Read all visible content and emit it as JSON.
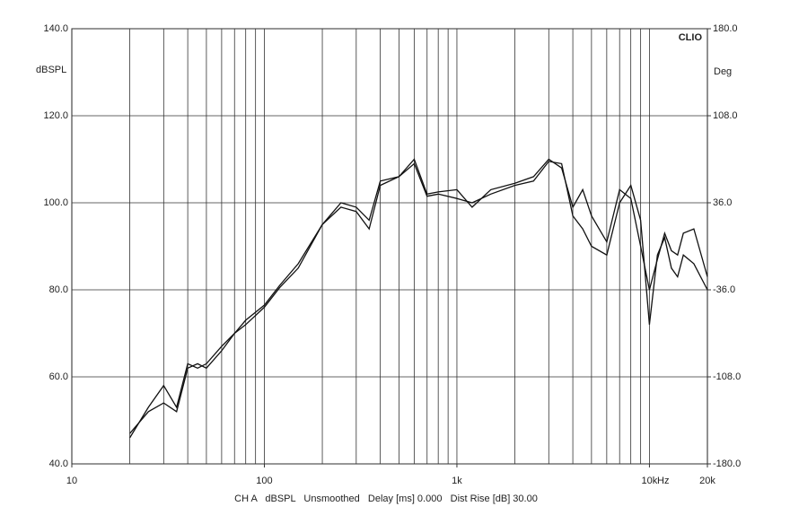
{
  "chart_data": {
    "type": "line",
    "y_label": "dBSPL",
    "y2_label": "Deg",
    "brand": "CLIO",
    "x_unit": "Hz",
    "footer": "CH A   dBSPL   Unsmoothed   Delay [ms] 0.000   Dist Rise [dB] 30.00",
    "x_log": true,
    "grid": true,
    "xlim": [
      10,
      20000
    ],
    "xticks": [
      10,
      100,
      {
        "value": 1000,
        "label": "1k"
      },
      {
        "value": 10000,
        "label": "10k"
      },
      {
        "value": 20000,
        "label": "20k"
      }
    ],
    "xgrid": [
      20,
      30,
      40,
      50,
      60,
      70,
      80,
      90,
      100,
      200,
      300,
      400,
      500,
      600,
      700,
      800,
      900,
      1000,
      2000,
      3000,
      4000,
      5000,
      6000,
      7000,
      8000,
      9000,
      10000
    ],
    "ylim": [
      40,
      140
    ],
    "yticks": [
      {
        "value": 40,
        "label": "40.0"
      },
      {
        "value": 60,
        "label": "60.0"
      },
      {
        "value": 80,
        "label": "80.0"
      },
      {
        "value": 100,
        "label": "100.0"
      },
      {
        "value": 120,
        "label": "120.0"
      },
      {
        "value": 140,
        "label": "140.0"
      }
    ],
    "y2lim": [
      -180,
      180
    ],
    "y2ticks": [
      {
        "value": -180,
        "label": "-180.0"
      },
      {
        "value": -108,
        "label": "-108.0"
      },
      {
        "value": -36,
        "label": "-36.0"
      },
      {
        "value": 36,
        "label": "36.0"
      },
      {
        "value": 108,
        "label": "108.0"
      },
      {
        "value": 180,
        "label": "180.0"
      }
    ],
    "x": [
      20,
      25,
      30,
      35,
      40,
      45,
      50,
      60,
      70,
      80,
      100,
      120,
      150,
      200,
      250,
      300,
      350,
      400,
      500,
      600,
      700,
      800,
      1000,
      1200,
      1500,
      2000,
      2500,
      3000,
      3500,
      4000,
      4500,
      5000,
      6000,
      7000,
      8000,
      9000,
      10000,
      11000,
      12000,
      13000,
      14000,
      15000,
      17000,
      20000
    ],
    "series": [
      {
        "color": "#111111",
        "values": [
          46,
          53,
          58,
          53,
          63,
          62,
          63,
          67,
          70,
          72,
          76,
          80.5,
          85,
          95,
          99,
          98,
          94,
          104,
          106,
          110,
          102,
          102.5,
          103,
          99,
          103,
          104.5,
          106,
          110,
          108,
          99,
          103,
          97,
          91,
          103,
          101,
          90,
          80,
          87,
          93,
          89,
          88,
          93,
          94,
          83
        ]
      },
      {
        "color": "#111111",
        "values": [
          47,
          52,
          54,
          52,
          62,
          63,
          62,
          66,
          70,
          73,
          76.5,
          81,
          86,
          95,
          100,
          99,
          96,
          105,
          106,
          109,
          101.5,
          102,
          101,
          100,
          102,
          104,
          105,
          109.5,
          109,
          97,
          94,
          90,
          88,
          100,
          104,
          96,
          72,
          88,
          92,
          85,
          83,
          88,
          86,
          80
        ]
      }
    ]
  }
}
